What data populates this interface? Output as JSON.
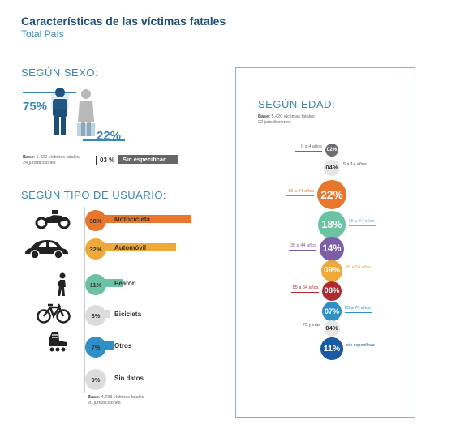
{
  "header": {
    "title": "Características de las víctimas fatales",
    "subtitle": "Total País"
  },
  "colors": {
    "title": "#1d4f7a",
    "accent": "#3b87b7",
    "orange": "#e8762d",
    "yellow": "#eda93a",
    "teal": "#6cc3a4",
    "gray_dark": "#6d6e71",
    "gray_light": "#dcdcdc",
    "blue": "#2f8fc7",
    "purple": "#7b5ea7",
    "red": "#b02a30",
    "navy": "#1a5aa0"
  },
  "icons": {
    "male": "man-icon",
    "female": "woman-icon",
    "motorcycle": "motorcycle-icon",
    "car": "car-icon",
    "pedestrian": "pedestrian-icon",
    "bicycle": "bicycle-icon",
    "other": "rollerskate-icon"
  },
  "sexo": {
    "heading": "SEGÚN SEXO:",
    "male_pct": "75%",
    "female_pct": "22%",
    "unspecified_pct": "03 %",
    "unspecified_label": "Sin especificar",
    "base_label": "Base:",
    "base_line1": "5.420 víctimas fatales",
    "base_line2": "24 jurisdicciones"
  },
  "usuario": {
    "heading": "SEGÚN TIPO DE USUARIO:",
    "base_label": "Base:",
    "base_line1": "4.733 víctimas fatales",
    "base_line2": "20 jurisdicciones"
  },
  "edad": {
    "heading": "SEGÚN EDAD:",
    "base_label": "Base:",
    "base_line1": "5.420 víctimas fatales",
    "base_line2": "22 jurisdicciones"
  },
  "chart_data": [
    {
      "type": "bar",
      "title": "SEGÚN SEXO:",
      "categories": [
        "Masculino",
        "Femenino",
        "Sin especificar"
      ],
      "values": [
        75,
        22,
        3
      ],
      "labels": [
        "75%",
        "22%",
        "03 %"
      ],
      "unit": "%"
    },
    {
      "type": "bar",
      "title": "SEGÚN TIPO DE USUARIO:",
      "categories": [
        "Motocicleta",
        "Automóvil",
        "Peatón",
        "Bicicleta",
        "Otros",
        "Sin datos"
      ],
      "labels": [
        "38%",
        "32%",
        "11%",
        "3%",
        "7%",
        "9%"
      ],
      "values": [
        38,
        32,
        11,
        3,
        7,
        9
      ],
      "colors": [
        "#e8762d",
        "#eda93a",
        "#6cc3a4",
        "#dcdcdc",
        "#2f8fc7",
        "#dcdcdc"
      ],
      "unit": "%"
    },
    {
      "type": "scatter",
      "title": "SEGÚN EDAD:",
      "categories": [
        "0 a 4 años",
        "5 a 14 años",
        "15 a 24 años",
        "25 a 34 años",
        "35 a 44 años",
        "45 a 54 años",
        "55 a 64 años",
        "65 a 74 años",
        "75 y más",
        "sin especificar"
      ],
      "labels": [
        "02%",
        "04%",
        "22%",
        "18%",
        "14%",
        "09%",
        "08%",
        "07%",
        "04%",
        "11%"
      ],
      "values": [
        2,
        4,
        22,
        18,
        14,
        9,
        8,
        7,
        4,
        11
      ],
      "colors": [
        "#6d6e71",
        "#e6e6e6",
        "#e8762d",
        "#6cc3a4",
        "#7b5ea7",
        "#eda93a",
        "#b02a30",
        "#2f8fc7",
        "#e6e6e6",
        "#1a5aa0"
      ],
      "unit": "%"
    }
  ]
}
